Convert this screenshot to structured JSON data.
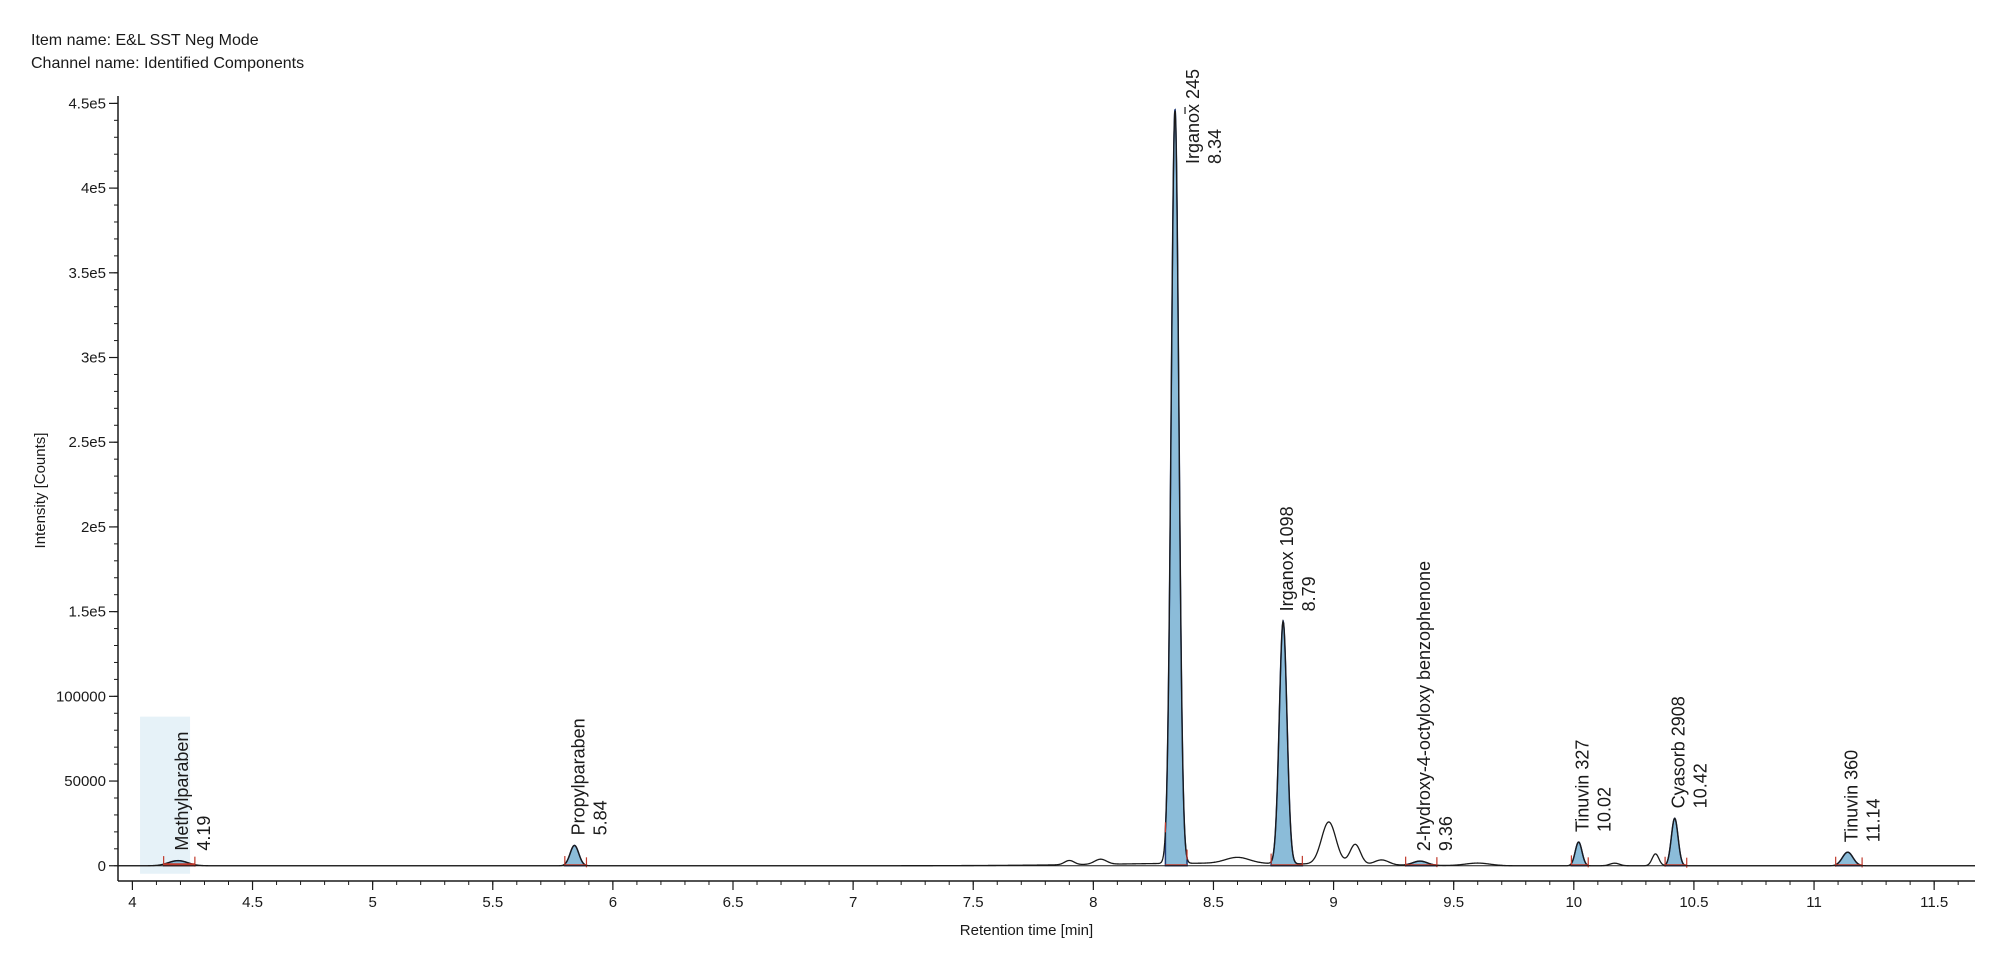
{
  "header": {
    "item_label": "Item name: E&L SST Neg Mode",
    "channel_label": "Channel name: Identified Components"
  },
  "chart_data": {
    "type": "line",
    "title": "",
    "xlabel": "Retention time [min]",
    "ylabel": "Intensity [Counts]",
    "xlim": [
      3.94,
      11.67
    ],
    "ylim": [
      -9000,
      452000
    ],
    "x_ticks": [
      4,
      4.5,
      5,
      5.5,
      6,
      6.5,
      7,
      7.5,
      8,
      8.5,
      9,
      9.5,
      10,
      10.5,
      11,
      11.5
    ],
    "x_tick_labels": [
      "4",
      "4.5",
      "5",
      "5.5",
      "6",
      "6.5",
      "7",
      "7.5",
      "8",
      "8.5",
      "9",
      "9.5",
      "10",
      "10.5",
      "11",
      "11.5"
    ],
    "y_ticks": [
      0,
      50000,
      100000,
      150000,
      200000,
      250000,
      300000,
      350000,
      400000,
      450000
    ],
    "y_tick_labels": [
      "0",
      "50000",
      "100000",
      "1.5e5",
      "2e5",
      "2.5e5",
      "3e5",
      "3.5e5",
      "4e5",
      "4.5e5"
    ],
    "grid": false,
    "colors": {
      "trace": "#1a1a1a",
      "peak_fill": "#8bbcd9",
      "peak_edge": "#1f3a78",
      "integration_marker": "#c0392b",
      "selection_highlight": "#e6f2f8"
    },
    "peaks": [
      {
        "name": "Methylparaben",
        "rt": 4.19,
        "rt_label": "4.19",
        "apex": 3000,
        "width": 0.04,
        "start": 4.13,
        "end": 4.26,
        "selected": true
      },
      {
        "name": "Propylparaben",
        "rt": 5.84,
        "rt_label": "5.84",
        "apex": 12000,
        "width": 0.018,
        "start": 5.8,
        "end": 5.89
      },
      {
        "name": "Irganox 245",
        "rt": 8.34,
        "rt_label": "8.34",
        "apex": 445000,
        "width": 0.016,
        "start": 8.3,
        "end": 8.39
      },
      {
        "name": "Irganox 1098",
        "rt": 8.79,
        "rt_label": "8.79",
        "apex": 143000,
        "width": 0.016,
        "start": 8.74,
        "end": 8.87
      },
      {
        "name": "2-hydroxy-4-octyloxy benzophenone",
        "rt": 9.36,
        "rt_label": "9.36",
        "apex": 2500,
        "width": 0.03,
        "start": 9.3,
        "end": 9.43
      },
      {
        "name": "Tinuvin 327",
        "rt": 10.02,
        "rt_label": "10.02",
        "apex": 14000,
        "width": 0.014,
        "start": 9.99,
        "end": 10.06
      },
      {
        "name": "Cyasorb 2908",
        "rt": 10.42,
        "rt_label": "10.42",
        "apex": 28000,
        "width": 0.014,
        "start": 10.38,
        "end": 10.47
      },
      {
        "name": "Tinuvin 360",
        "rt": 11.14,
        "rt_label": "11.14",
        "apex": 8000,
        "width": 0.022,
        "start": 11.09,
        "end": 11.2
      }
    ],
    "unlabeled_peaks": [
      {
        "rt": 7.9,
        "apex": 2500,
        "width": 0.02
      },
      {
        "rt": 8.03,
        "apex": 3000,
        "width": 0.025
      },
      {
        "rt": 8.6,
        "apex": 3500,
        "width": 0.05
      },
      {
        "rt": 8.98,
        "apex": 25000,
        "width": 0.03
      },
      {
        "rt": 9.09,
        "apex": 12000,
        "width": 0.022
      },
      {
        "rt": 9.2,
        "apex": 3000,
        "width": 0.03
      },
      {
        "rt": 9.6,
        "apex": 1500,
        "width": 0.05
      },
      {
        "rt": 10.17,
        "apex": 1500,
        "width": 0.02
      },
      {
        "rt": 10.34,
        "apex": 7000,
        "width": 0.014
      }
    ]
  }
}
